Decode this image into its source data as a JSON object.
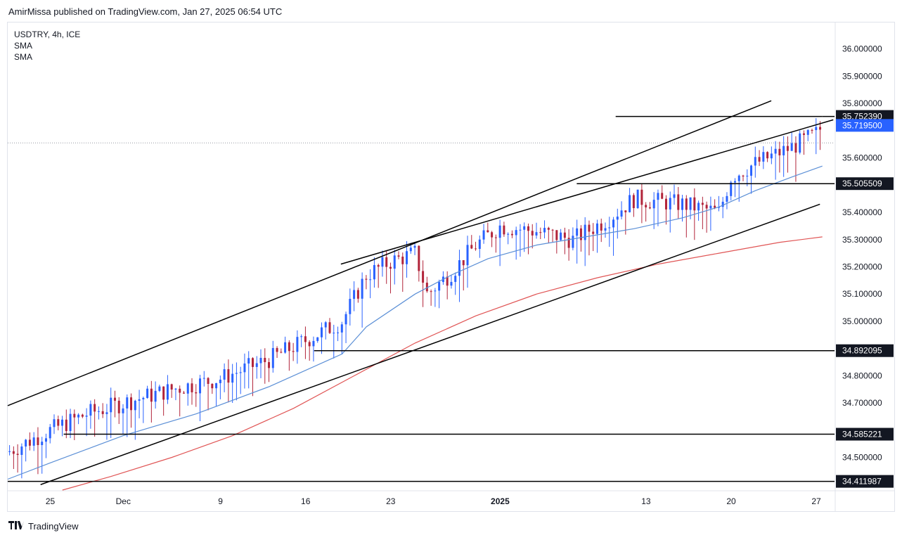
{
  "header": {
    "text": "AmirMissa published on TradingView.com, Jan 27, 2025 06:54 UTC"
  },
  "legend": {
    "symbol": "USDTRY, 4h, ICE",
    "indicator1": "SMA",
    "indicator2": "SMA"
  },
  "footer": {
    "logo_icon": "tradingview-logo-icon",
    "brand": "TradingView"
  },
  "colors": {
    "up": "#2962ff",
    "down": "#b2243a",
    "sma_fast": "#5b8fd6",
    "sma_slow": "#e05555",
    "line": "#000000",
    "current_price_bg": "#2962ff"
  },
  "chart_data": {
    "type": "candlestick",
    "symbol": "USDTRY",
    "interval": "4h",
    "exchange": "ICE",
    "ylim": [
      34.38,
      36.1
    ],
    "y_ticks": [
      "36.000000",
      "35.900000",
      "35.800000",
      "35.600000",
      "35.400000",
      "35.300000",
      "35.200000",
      "35.100000",
      "35.000000",
      "34.800000",
      "34.700000",
      "34.500000"
    ],
    "x_ticks": [
      {
        "label": "25",
        "day": 0
      },
      {
        "label": "Dec",
        "day": 6
      },
      {
        "label": "9",
        "day": 14
      },
      {
        "label": "16",
        "day": 21
      },
      {
        "label": "23",
        "day": 28
      },
      {
        "label": "2025",
        "day": 37
      },
      {
        "label": "13",
        "day": 49
      },
      {
        "label": "20",
        "day": 56
      },
      {
        "label": "27",
        "day": 63
      }
    ],
    "x_domain_days": [
      -3.5,
      64.5
    ],
    "price_levels": [
      {
        "label": "35.752390",
        "value": 35.75239,
        "from_day": 46.5,
        "style": "line"
      },
      {
        "label": "35.719500",
        "value": 35.7195,
        "from_day": null,
        "style": "current"
      },
      {
        "label": "35.505509",
        "value": 35.505509,
        "from_day": 43.3,
        "style": "line"
      },
      {
        "label": "34.892095",
        "value": 34.892095,
        "from_day": 21.7,
        "style": "line"
      },
      {
        "label": "34.585221",
        "value": 34.585221,
        "from_day": 1.1,
        "style": "line"
      },
      {
        "label": "34.411987",
        "value": 34.411987,
        "from_day": -3.5,
        "style": "line"
      }
    ],
    "trendlines": [
      {
        "name": "upper-channel",
        "p1": [
          -3.5,
          34.69
        ],
        "p2": [
          59.3,
          35.81
        ]
      },
      {
        "name": "lower-channel",
        "p1": [
          -0.8,
          34.4
        ],
        "p2": [
          63.3,
          35.43
        ]
      },
      {
        "name": "rising-wedge-line",
        "p1": [
          23.9,
          35.21
        ],
        "p2": [
          64.4,
          35.74
        ]
      }
    ],
    "ohlc_anchors": [
      {
        "day": -3.5,
        "price": 34.52
      },
      {
        "day": 0,
        "price": 34.6
      },
      {
        "day": 3,
        "price": 34.66
      },
      {
        "day": 6,
        "price": 34.7
      },
      {
        "day": 10,
        "price": 34.75
      },
      {
        "day": 14,
        "price": 34.79
      },
      {
        "day": 18,
        "price": 34.86
      },
      {
        "day": 21,
        "price": 34.93
      },
      {
        "day": 24,
        "price": 35.0
      },
      {
        "day": 26,
        "price": 35.17
      },
      {
        "day": 28,
        "price": 35.22
      },
      {
        "day": 30,
        "price": 35.25
      },
      {
        "day": 31,
        "price": 35.1
      },
      {
        "day": 33,
        "price": 35.18
      },
      {
        "day": 35,
        "price": 35.28
      },
      {
        "day": 37,
        "price": 35.35
      },
      {
        "day": 40,
        "price": 35.33
      },
      {
        "day": 43,
        "price": 35.3
      },
      {
        "day": 46,
        "price": 35.38
      },
      {
        "day": 48,
        "price": 35.45
      },
      {
        "day": 52,
        "price": 35.43
      },
      {
        "day": 55,
        "price": 35.4
      },
      {
        "day": 56,
        "price": 35.53
      },
      {
        "day": 58,
        "price": 35.58
      },
      {
        "day": 61,
        "price": 35.64
      },
      {
        "day": 63,
        "price": 35.69
      },
      {
        "day": 63.6,
        "price": 35.72
      }
    ],
    "sma_fast": [
      [
        -3.5,
        34.42
      ],
      [
        0,
        34.48
      ],
      [
        6,
        34.58
      ],
      [
        12,
        34.66
      ],
      [
        18,
        34.76
      ],
      [
        24,
        34.88
      ],
      [
        26,
        34.98
      ],
      [
        30,
        35.1
      ],
      [
        33,
        35.17
      ],
      [
        36,
        35.23
      ],
      [
        40,
        35.28
      ],
      [
        44,
        35.31
      ],
      [
        48,
        35.34
      ],
      [
        52,
        35.38
      ],
      [
        55,
        35.42
      ],
      [
        58,
        35.48
      ],
      [
        61,
        35.53
      ],
      [
        63.5,
        35.57
      ]
    ],
    "sma_slow": [
      [
        1,
        34.38
      ],
      [
        5,
        34.43
      ],
      [
        10,
        34.5
      ],
      [
        15,
        34.58
      ],
      [
        20,
        34.68
      ],
      [
        25,
        34.8
      ],
      [
        30,
        34.92
      ],
      [
        35,
        35.02
      ],
      [
        40,
        35.1
      ],
      [
        45,
        35.16
      ],
      [
        50,
        35.21
      ],
      [
        55,
        35.25
      ],
      [
        60,
        35.29
      ],
      [
        63.5,
        35.31
      ]
    ]
  }
}
